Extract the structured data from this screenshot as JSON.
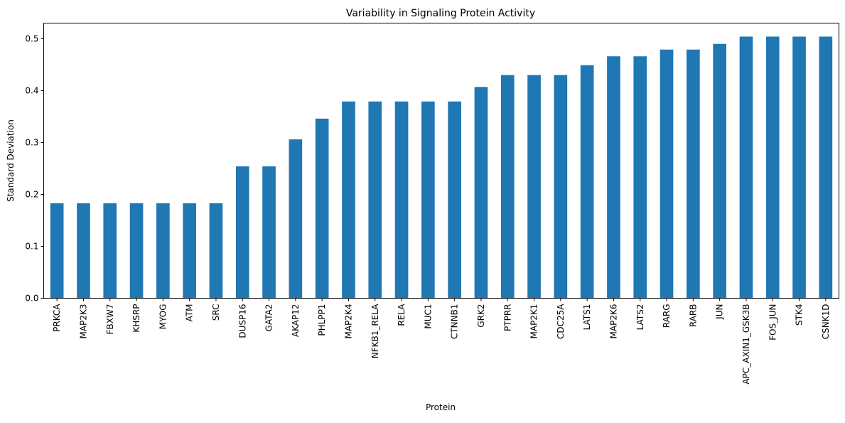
{
  "chart_data": {
    "type": "bar",
    "title": "Variability in Signaling Protein Activity",
    "xlabel": "Protein",
    "ylabel": "Standard Deviation",
    "ylim": [
      0,
      0.53
    ],
    "yticks": [
      "0.0",
      "0.1",
      "0.2",
      "0.3",
      "0.4",
      "0.5"
    ],
    "ytick_values": [
      0,
      0.1,
      0.2,
      0.3,
      0.4,
      0.5
    ],
    "bar_color": "#1f77b4",
    "categories": [
      "PRKCA",
      "MAP2K3",
      "FBXW7",
      "KHSRP",
      "MYOG",
      "ATM",
      "SRC",
      "DUSP16",
      "GATA2",
      "AKAP12",
      "PHLPP1",
      "MAP2K4",
      "NFKB1_RELA",
      "RELA",
      "MUC1",
      "CTNNB1",
      "GRK2",
      "PTPRR",
      "MAP2K1",
      "CDC25A",
      "LATS1",
      "MAP2K6",
      "LATS2",
      "RARG",
      "RARB",
      "JUN",
      "APC_AXIN1_GSK3B",
      "FOS_JUN",
      "STK4",
      "CSNK1D"
    ],
    "values": [
      0.183,
      0.183,
      0.183,
      0.183,
      0.183,
      0.183,
      0.183,
      0.254,
      0.254,
      0.306,
      0.346,
      0.379,
      0.379,
      0.379,
      0.379,
      0.379,
      0.407,
      0.43,
      0.43,
      0.43,
      0.449,
      0.466,
      0.466,
      0.479,
      0.479,
      0.49,
      0.504,
      0.504,
      0.504,
      0.504
    ]
  }
}
